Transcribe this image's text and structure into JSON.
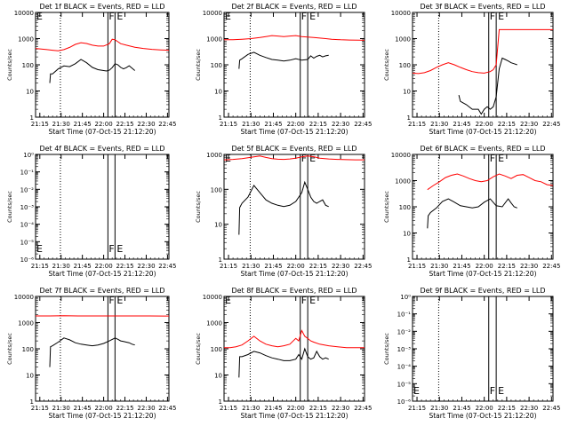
{
  "chart_data": [
    {
      "type": "line",
      "title": "Det 1f BLACK = Events, RED = LLD",
      "xlabel": "Start Time (07-Oct-15 21:12:20)",
      "ylabel": "Counts/sec",
      "yscale": "log",
      "ylim": [
        1,
        10000
      ],
      "ytick_labels": [
        "1",
        "10",
        "100",
        "1000",
        "10000"
      ],
      "xtick_labels": [
        "21:15",
        "21:30",
        "21:45",
        "22:00",
        "22:15",
        "22:30",
        "22:45"
      ],
      "marker_labels": [
        "E",
        "F",
        "E"
      ],
      "series": [
        {
          "name": "LLD",
          "color": "#ff0000",
          "x": [
            0,
            4,
            8,
            12,
            16,
            20,
            24,
            28,
            32,
            36,
            40,
            44,
            48,
            52,
            54,
            56,
            58,
            60,
            64,
            70,
            76,
            82,
            88,
            94
          ],
          "y": [
            420,
            400,
            380,
            360,
            340,
            380,
            460,
            600,
            700,
            650,
            560,
            520,
            520,
            640,
            950,
            900,
            760,
            640,
            560,
            470,
            420,
            390,
            370,
            360
          ]
        },
        {
          "name": "Events",
          "color": "#000000",
          "x": [
            10,
            10.5,
            12,
            16,
            20,
            24,
            28,
            32,
            36,
            40,
            44,
            48,
            50,
            52,
            54,
            56,
            58,
            60,
            62,
            64,
            66,
            70
          ],
          "y": [
            20,
            45,
            45,
            70,
            90,
            85,
            110,
            160,
            120,
            80,
            65,
            60,
            58,
            62,
            78,
            110,
            100,
            80,
            70,
            78,
            92,
            60
          ]
        }
      ]
    },
    {
      "type": "line",
      "title": "Det 2f BLACK = Events, RED = LLD",
      "xlabel": "Start Time (07-Oct-15 21:12:20)",
      "ylabel": "Counts/sec",
      "yscale": "log",
      "ylim": [
        1,
        10000
      ],
      "ytick_labels": [
        "1",
        "10",
        "100",
        "1000",
        "10000"
      ],
      "xtick_labels": [
        "21:15",
        "21:30",
        "21:45",
        "22:00",
        "22:15",
        "22:30",
        "22:45"
      ],
      "marker_labels": [
        "E",
        "F",
        "E"
      ],
      "series": [
        {
          "name": "LLD",
          "color": "#ff0000",
          "x": [
            0,
            6,
            12,
            18,
            24,
            28,
            32,
            36,
            40,
            44,
            48,
            52,
            56,
            60,
            64,
            68,
            72,
            78,
            84,
            90,
            94
          ],
          "y": [
            900,
            910,
            950,
            1000,
            1100,
            1200,
            1300,
            1250,
            1200,
            1250,
            1300,
            1200,
            1150,
            1100,
            1050,
            1000,
            950,
            900,
            880,
            870,
            860
          ]
        },
        {
          "name": "Events",
          "color": "#000000",
          "x": [
            10,
            10.5,
            12,
            16,
            20,
            24,
            28,
            32,
            36,
            40,
            44,
            48,
            52,
            56,
            58,
            60,
            62,
            64,
            66,
            68,
            70
          ],
          "y": [
            70,
            150,
            170,
            250,
            300,
            230,
            190,
            160,
            150,
            140,
            150,
            170,
            150,
            160,
            220,
            180,
            210,
            230,
            200,
            220,
            230
          ]
        }
      ]
    },
    {
      "type": "line",
      "title": "Det 3f BLACK = Events, RED = LLD",
      "xlabel": "Start Time (07-Oct-15 21:12:20)",
      "ylabel": "Counts/sec",
      "yscale": "log",
      "ylim": [
        1,
        10000
      ],
      "ytick_labels": [
        "1",
        "10",
        "100",
        "1000",
        "10000"
      ],
      "xtick_labels": [
        "21:15",
        "21:30",
        "21:45",
        "22:00",
        "22:15",
        "22:30",
        "22:45"
      ],
      "marker_labels": [
        "F",
        "E"
      ],
      "series": [
        {
          "name": "LLD",
          "color": "#ff0000",
          "x": [
            0,
            4,
            8,
            12,
            16,
            20,
            24,
            28,
            32,
            36,
            40,
            44,
            48,
            52,
            54,
            56,
            58,
            60,
            64,
            70,
            76,
            82,
            88,
            94
          ],
          "y": [
            48,
            46,
            50,
            60,
            80,
            100,
            120,
            100,
            80,
            65,
            55,
            50,
            48,
            55,
            65,
            100,
            2200,
            2200,
            2200,
            2200,
            2200,
            2200,
            2200,
            2200
          ]
        },
        {
          "name": "Events",
          "color": "#000000",
          "x": [
            31,
            32,
            36,
            40,
            44,
            46,
            48,
            50,
            52,
            54,
            56,
            58,
            60,
            62,
            64,
            66,
            68,
            70
          ],
          "y": [
            7,
            4,
            3,
            2,
            2,
            1.3,
            2,
            2.5,
            2,
            2.5,
            6,
            70,
            180,
            160,
            140,
            120,
            110,
            100
          ]
        }
      ]
    },
    {
      "type": "line",
      "title": "Det 4f BLACK = Events, RED = LLD",
      "xlabel": "Start Time (07-Oct-15 21:12:20)",
      "ylabel": "Counts/sec",
      "yscale": "log",
      "ylim": [
        1e-06,
        1
      ],
      "ytick_labels": [
        "10⁻⁶",
        "10⁻⁵",
        "10⁻⁴",
        "10⁻³",
        "10⁻²",
        "10⁻¹",
        "10⁰"
      ],
      "xtick_labels": [
        "21:15",
        "21:30",
        "21:45",
        "22:00",
        "22:15",
        "22:30",
        "22:45"
      ],
      "marker_labels": [
        "E",
        "F",
        "E"
      ],
      "series": []
    },
    {
      "type": "line",
      "title": "Det 5f BLACK = Events, RED = LLD",
      "xlabel": "Start Time (07-Oct-15 21:12:20)",
      "ylabel": "Counts/sec",
      "yscale": "log",
      "ylim": [
        1,
        1000
      ],
      "ytick_labels": [
        "1",
        "10",
        "100",
        "1000"
      ],
      "xtick_labels": [
        "21:15",
        "21:30",
        "21:45",
        "22:00",
        "22:15",
        "22:30",
        "22:45"
      ],
      "marker_labels": [
        "E",
        "F",
        "E"
      ],
      "series": [
        {
          "name": "LLD",
          "color": "#ff0000",
          "x": [
            0,
            6,
            12,
            16,
            20,
            24,
            28,
            32,
            36,
            40,
            44,
            48,
            52,
            56,
            60,
            64,
            70,
            76,
            82,
            88,
            94
          ],
          "y": [
            700,
            720,
            760,
            800,
            850,
            900,
            820,
            760,
            730,
            720,
            740,
            780,
            850,
            900,
            860,
            780,
            740,
            720,
            710,
            700,
            700
          ]
        },
        {
          "name": "Events",
          "color": "#000000",
          "x": [
            10,
            10.5,
            12,
            16,
            20,
            24,
            28,
            32,
            36,
            40,
            44,
            48,
            52,
            54,
            56,
            58,
            60,
            62,
            64,
            66,
            68,
            70
          ],
          "y": [
            5,
            30,
            40,
            60,
            130,
            80,
            50,
            40,
            35,
            32,
            35,
            45,
            80,
            160,
            100,
            60,
            45,
            40,
            45,
            50,
            35,
            32
          ]
        }
      ]
    },
    {
      "type": "line",
      "title": "Det 6f BLACK = Events, RED = LLD",
      "xlabel": "Start Time (07-Oct-15 21:12:20)",
      "ylabel": "Counts/sec",
      "yscale": "log",
      "ylim": [
        1,
        10000
      ],
      "ytick_labels": [
        "1",
        "10",
        "100",
        "1000",
        "10000"
      ],
      "xtick_labels": [
        "21:15",
        "21:30",
        "21:45",
        "22:00",
        "22:15",
        "22:30",
        "22:45"
      ],
      "marker_labels": [
        "F",
        "E"
      ],
      "series": [
        {
          "name": "LLD",
          "color": "#ff0000",
          "x": [
            10,
            14,
            18,
            22,
            26,
            30,
            34,
            38,
            42,
            46,
            50,
            54,
            58,
            62,
            66,
            70,
            74,
            78,
            82,
            86,
            90,
            94
          ],
          "y": [
            450,
            650,
            900,
            1300,
            1600,
            1800,
            1500,
            1200,
            1000,
            900,
            1000,
            1400,
            1800,
            1500,
            1200,
            1600,
            1700,
            1300,
            1000,
            900,
            700,
            650
          ]
        },
        {
          "name": "Events",
          "color": "#000000",
          "x": [
            10,
            10.5,
            12,
            16,
            20,
            24,
            28,
            32,
            36,
            40,
            44,
            48,
            52,
            56,
            60,
            64,
            66,
            68,
            70
          ],
          "y": [
            15,
            45,
            60,
            90,
            160,
            200,
            150,
            110,
            100,
            90,
            100,
            150,
            200,
            110,
            100,
            200,
            140,
            100,
            90
          ]
        }
      ]
    },
    {
      "type": "line",
      "title": "Det 7f BLACK = Events, RED = LLD",
      "xlabel": "Start Time (07-Oct-15 21:12:20)",
      "ylabel": "Counts/sec",
      "yscale": "log",
      "ylim": [
        1,
        10000
      ],
      "ytick_labels": [
        "1",
        "10",
        "100",
        "1000",
        "10000"
      ],
      "xtick_labels": [
        "21:15",
        "21:30",
        "21:45",
        "22:00",
        "22:15",
        "22:30",
        "22:45"
      ],
      "marker_labels": [
        "F",
        "E"
      ],
      "series": [
        {
          "name": "LLD",
          "color": "#ff0000",
          "x": [
            0,
            10,
            20,
            30,
            40,
            50,
            60,
            70,
            80,
            90,
            94
          ],
          "y": [
            1800,
            1800,
            1820,
            1800,
            1800,
            1790,
            1800,
            1800,
            1790,
            1780,
            1780
          ]
        },
        {
          "name": "Events",
          "color": "#000000",
          "x": [
            10,
            10.5,
            12,
            16,
            20,
            24,
            28,
            32,
            36,
            40,
            44,
            48,
            52,
            56,
            58,
            60,
            62,
            64,
            66,
            68,
            70
          ],
          "y": [
            20,
            120,
            130,
            180,
            260,
            220,
            170,
            150,
            140,
            130,
            140,
            160,
            200,
            260,
            230,
            200,
            190,
            180,
            170,
            150,
            140
          ]
        }
      ]
    },
    {
      "type": "line",
      "title": "Det 8f BLACK = Events, RED = LLD",
      "xlabel": "Start Time (07-Oct-15 21:12:20)",
      "ylabel": "Counts/sec",
      "yscale": "log",
      "ylim": [
        1,
        10000
      ],
      "ytick_labels": [
        "1",
        "10",
        "100",
        "1000",
        "10000"
      ],
      "xtick_labels": [
        "21:15",
        "21:30",
        "21:45",
        "22:00",
        "22:15",
        "22:30",
        "22:45"
      ],
      "marker_labels": [
        "E",
        "F",
        "E"
      ],
      "series": [
        {
          "name": "LLD",
          "color": "#ff0000",
          "x": [
            0,
            4,
            8,
            12,
            16,
            20,
            24,
            28,
            32,
            36,
            40,
            44,
            48,
            50,
            52,
            54,
            56,
            58,
            60,
            64,
            70,
            76,
            82,
            88,
            94
          ],
          "y": [
            110,
            110,
            120,
            140,
            200,
            300,
            200,
            150,
            130,
            120,
            130,
            150,
            250,
            200,
            500,
            300,
            250,
            200,
            180,
            150,
            130,
            120,
            110,
            110,
            110
          ]
        },
        {
          "name": "Events",
          "color": "#000000",
          "x": [
            10,
            10.5,
            12,
            16,
            20,
            24,
            28,
            32,
            36,
            40,
            44,
            48,
            50,
            52,
            54,
            56,
            58,
            60,
            62,
            64,
            66,
            68,
            70
          ],
          "y": [
            8,
            50,
            50,
            60,
            80,
            70,
            55,
            45,
            40,
            35,
            35,
            40,
            60,
            40,
            100,
            50,
            40,
            45,
            80,
            50,
            40,
            45,
            40
          ]
        }
      ]
    },
    {
      "type": "line",
      "title": "Det 9f BLACK = Events, RED = LLD",
      "xlabel": "Start Time (07-Oct-15 21:12:20)",
      "ylabel": "Counts/sec",
      "yscale": "log",
      "ylim": [
        1e-06,
        1
      ],
      "ytick_labels": [
        "10⁻⁶",
        "10⁻⁵",
        "10⁻⁴",
        "10⁻³",
        "10⁻²",
        "10⁻¹",
        "10⁰"
      ],
      "xtick_labels": [
        "21:15",
        "21:30",
        "21:45",
        "22:00",
        "22:15",
        "22:30",
        "22:45"
      ],
      "marker_labels": [
        "E",
        "F",
        "E"
      ],
      "series": []
    }
  ]
}
